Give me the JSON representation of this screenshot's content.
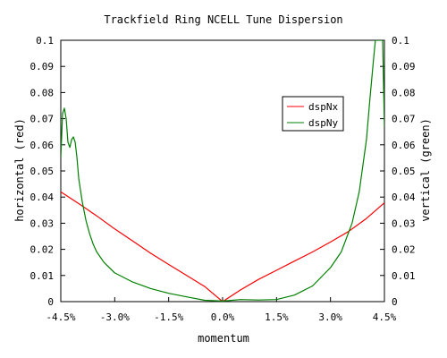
{
  "chart_data": {
    "type": "line",
    "title": "Trackfield Ring NCELL Tune Dispersion",
    "xlabel": "momentum",
    "ylabel_left": "horizontal (red)",
    "ylabel_right": "vertical (green)",
    "xlim": [
      -4.5,
      4.5
    ],
    "ylim": [
      0,
      0.1
    ],
    "x_ticks": [
      -4.5,
      -3.0,
      -1.5,
      0.0,
      1.5,
      3.0,
      4.5
    ],
    "x_tick_labels": [
      "-4.5%",
      "-3.0%",
      "-1.5%",
      "0.0%",
      "1.5%",
      "3.0%",
      "4.5%"
    ],
    "y_ticks": [
      0,
      0.01,
      0.02,
      0.03,
      0.04,
      0.05,
      0.06,
      0.07,
      0.08,
      0.09,
      0.1
    ],
    "y_tick_labels": [
      "0",
      "0.01",
      "0.02",
      "0.03",
      "0.04",
      "0.05",
      "0.06",
      "0.07",
      "0.08",
      "0.09",
      "0.1"
    ],
    "legend_position": "right",
    "series": [
      {
        "name": "dspNx",
        "color": "#ff0000",
        "axis": "left",
        "x": [
          -4.5,
          -4.0,
          -3.5,
          -3.0,
          -2.5,
          -2.0,
          -1.5,
          -1.0,
          -0.5,
          0.0,
          0.5,
          1.0,
          1.5,
          2.0,
          2.5,
          3.0,
          3.5,
          4.0,
          4.5
        ],
        "y": [
          0.042,
          0.0375,
          0.0328,
          0.0278,
          0.0232,
          0.0185,
          0.0142,
          0.01,
          0.0058,
          0.0,
          0.0045,
          0.0085,
          0.012,
          0.0155,
          0.019,
          0.0228,
          0.0268,
          0.0318,
          0.0378
        ]
      },
      {
        "name": "dspNy",
        "color": "#008000",
        "axis": "right",
        "x": [
          -4.5,
          -4.45,
          -4.4,
          -4.35,
          -4.3,
          -4.25,
          -4.2,
          -4.15,
          -4.1,
          -4.05,
          -4.0,
          -3.9,
          -3.8,
          -3.7,
          -3.6,
          -3.5,
          -3.3,
          -3.0,
          -2.5,
          -2.0,
          -1.5,
          -1.0,
          -0.5,
          0.0,
          0.5,
          1.0,
          1.5,
          2.0,
          2.5,
          3.0,
          3.3,
          3.6,
          3.8,
          4.0,
          4.1,
          4.2,
          4.25,
          4.3,
          4.35,
          4.4,
          4.45,
          4.5
        ],
        "y": [
          0.055,
          0.072,
          0.074,
          0.07,
          0.061,
          0.059,
          0.062,
          0.063,
          0.061,
          0.055,
          0.047,
          0.038,
          0.031,
          0.026,
          0.022,
          0.019,
          0.015,
          0.011,
          0.0075,
          0.005,
          0.0032,
          0.0018,
          0.0005,
          0.0002,
          0.0008,
          0.0006,
          0.0008,
          0.0025,
          0.006,
          0.013,
          0.019,
          0.03,
          0.042,
          0.062,
          0.078,
          0.093,
          0.1,
          0.1,
          0.1,
          0.1,
          0.1,
          0.067
        ]
      }
    ]
  }
}
